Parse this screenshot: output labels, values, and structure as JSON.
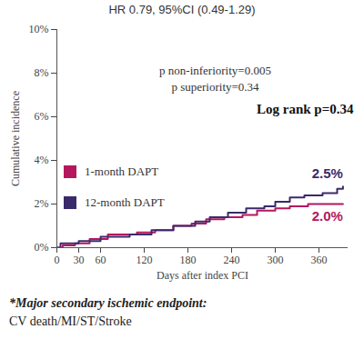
{
  "chart_data": {
    "type": "line",
    "title": "HR 0.79, 95%CI (0.49-1.29)",
    "x_label": "Days after index PCI",
    "y_label": "Cumulative incidence",
    "xlim": [
      0,
      400
    ],
    "xticks": [
      0,
      30,
      60,
      120,
      180,
      240,
      300,
      360
    ],
    "ylim": [
      0,
      10
    ],
    "yticks": [
      {
        "value": 0,
        "label": "0%"
      },
      {
        "value": 2,
        "label": "2%"
      },
      {
        "value": 4,
        "label": "4%"
      },
      {
        "value": 6,
        "label": "6%"
      },
      {
        "value": 8,
        "label": "8%"
      },
      {
        "value": 10,
        "label": "10%"
      }
    ],
    "line_style": "step",
    "legend": "left",
    "series": [
      {
        "name": "1-month DAPT",
        "color": "#b5175f",
        "x": [
          0,
          8,
          25,
          45,
          70,
          110,
          135,
          160,
          185,
          205,
          230,
          255,
          275,
          300,
          320,
          345,
          393
        ],
        "values": [
          0,
          0.1,
          0.2,
          0.4,
          0.6,
          0.7,
          0.8,
          1.0,
          1.1,
          1.3,
          1.4,
          1.5,
          1.7,
          1.8,
          1.9,
          2.0,
          2.0
        ],
        "end_label": "2.0%"
      },
      {
        "name": "12-month DAPT",
        "color": "#3b2a6b",
        "x": [
          0,
          5,
          30,
          60,
          100,
          130,
          160,
          190,
          210,
          235,
          260,
          285,
          300,
          320,
          340,
          365,
          385,
          393
        ],
        "values": [
          0,
          0.2,
          0.3,
          0.5,
          0.6,
          0.8,
          1.0,
          1.2,
          1.4,
          1.6,
          1.8,
          1.9,
          2.1,
          2.3,
          2.4,
          2.5,
          2.7,
          2.8
        ],
        "end_label": "2.5%"
      }
    ],
    "annotations": [
      "p non-inferiority=0.005",
      "p superiority=0.34",
      "Log rank p=0.34"
    ],
    "footnote": [
      "*Major secondary ischemic endpoint:",
      "CV death/MI/ST/Stroke"
    ]
  }
}
